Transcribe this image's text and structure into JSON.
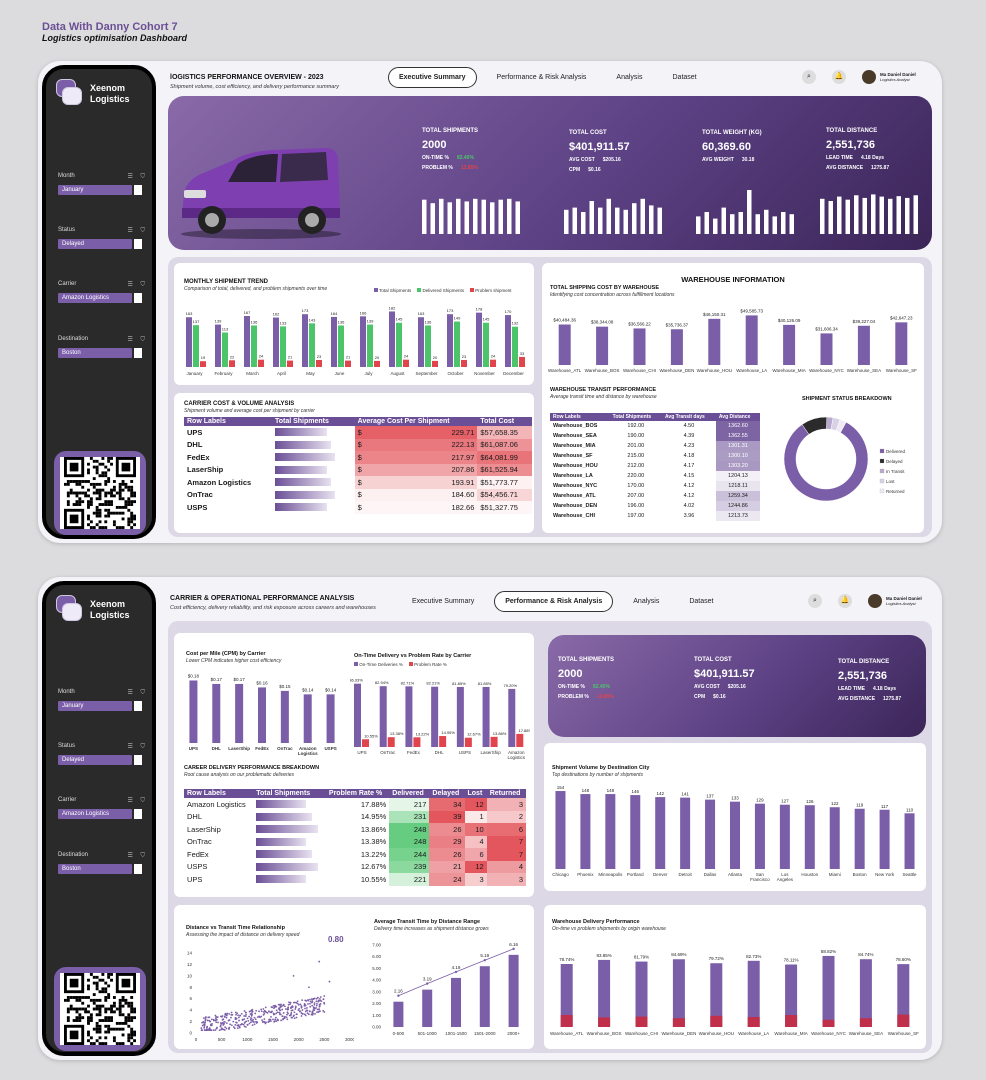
{
  "header": {
    "title": "Data With Danny Cohort 7",
    "subtitle": "Logistics optimisation Dashboard"
  },
  "brand": {
    "name_line1": "Xeenom",
    "name_line2": "Logistics"
  },
  "filters": [
    {
      "label": "Month",
      "value": "January"
    },
    {
      "label": "Status",
      "value": "Delayed"
    },
    {
      "label": "Carrier",
      "value": "Amazon Logistics"
    },
    {
      "label": "Destination",
      "value": "Boston"
    }
  ],
  "nav": {
    "tabs": [
      "Executive Summary",
      "Performance & Risk Analysis",
      "Analysis",
      "Dataset"
    ]
  },
  "user": {
    "name": "Ma Daniel Daniel",
    "role": "Logistics Analyst"
  },
  "page1": {
    "title": "lOGISTICS PERFORMANCE OVERVIEW - 2023",
    "subtitle": "Shipment volume, cost efficiency, and delivery performance summary",
    "kpis": {
      "shipments": {
        "title": "TOTAL SHIPMENTS",
        "value": "2000",
        "ontime_label": "ON-TIME %",
        "ontime": "82.40%",
        "problem_label": "PROBLEM %",
        "problem": "13.85%"
      },
      "cost": {
        "title": "TOTAL COST",
        "value": "$401,911.57",
        "avg_label": "AVG COST",
        "avg": "$205.16",
        "cpm_label": "CPM",
        "cpm": "$0.16"
      },
      "weight": {
        "title": "TOTAL WEIGHT (KG)",
        "value": "60,369.60",
        "avg_label": "AVG WEIGHT",
        "avg": "30.18"
      },
      "distance": {
        "title": "TOTAL DISTANCE",
        "value": "2,551,736",
        "lead_label": "LEAD TIME",
        "lead": "4.18 Days",
        "avgd_label": "AVG DISTANCE",
        "avgd": "1275.87"
      }
    },
    "sparks": {
      "shipments": [
        0.78,
        0.7,
        0.8,
        0.72,
        0.8,
        0.74,
        0.8,
        0.78,
        0.72,
        0.78,
        0.8,
        0.74
      ],
      "cost": [
        0.55,
        0.6,
        0.5,
        0.75,
        0.6,
        0.8,
        0.6,
        0.55,
        0.7,
        0.8,
        0.65,
        0.6
      ],
      "weight": [
        0.4,
        0.5,
        0.35,
        0.6,
        0.45,
        0.5,
        1.0,
        0.45,
        0.55,
        0.4,
        0.5,
        0.45
      ],
      "distance": [
        0.8,
        0.75,
        0.85,
        0.78,
        0.88,
        0.82,
        0.9,
        0.85,
        0.8,
        0.86,
        0.82,
        0.88
      ]
    },
    "monthly": {
      "title": "MONTHLY SHIPMENT TREND",
      "subtitle": "Comparison of total, delivered, and problem shipments over time",
      "legend": [
        "Total Shipments",
        "Delivered Shipments",
        "Problem shipment"
      ],
      "colors": [
        "#7b5ea8",
        "#4cc46a",
        "#e0444c"
      ]
    },
    "carrier_table": {
      "title": "CARRIER COST & VOLUME ANALYSIS",
      "subtitle": "Shipment volume and average cost per shipment by carrier",
      "headers": [
        "Row Labels",
        "Total Shipments",
        "Average Cost Per Shipment",
        "Total Cost"
      ],
      "rows": [
        {
          "label": "UPS",
          "avg": "229.71",
          "total": "$57,658.35"
        },
        {
          "label": "DHL",
          "avg": "222.13",
          "total": "$61,087.06"
        },
        {
          "label": "FedEx",
          "avg": "217.97",
          "total": "$64,081.99"
        },
        {
          "label": "LaserShip",
          "avg": "207.86",
          "total": "$61,525.94"
        },
        {
          "label": "Amazon Logistics",
          "avg": "193.91",
          "total": "$51,773.77"
        },
        {
          "label": "OnTrac",
          "avg": "184.60",
          "total": "$54,456.71"
        },
        {
          "label": "USPS",
          "avg": "182.66",
          "total": "$51,327.75"
        }
      ]
    },
    "warehouse": {
      "title": "WAREHOUSE INFORMATION",
      "cost_title": "TOTAL SHIPPING COST BY WAREHOUSE",
      "cost_subtitle": "Identifying cost concentration across fulfillment locations",
      "transit_title": "WAREHOUSE TRANSIT PERFORMANCE",
      "transit_subtitle": "Average transit time and distance by warehouse",
      "transit_headers": [
        "Row Labels",
        "Total Shipments",
        "Avg Transit days",
        "Avg Distance"
      ],
      "transit_rows": [
        [
          "Warehouse_BOS",
          "192.00",
          "4.50",
          "1362.60"
        ],
        [
          "Warehouse_SEA",
          "190.00",
          "4.39",
          "1362.55"
        ],
        [
          "Warehouse_MIA",
          "201.00",
          "4.23",
          "1301.31"
        ],
        [
          "Warehouse_SF",
          "215.00",
          "4.18",
          "1300.10"
        ],
        [
          "Warehouse_HOU",
          "212.00",
          "4.17",
          "1303.20"
        ],
        [
          "Warehouse_LA",
          "220.00",
          "4.15",
          "1204.13"
        ],
        [
          "Warehouse_NYC",
          "170.00",
          "4.12",
          "1218.11"
        ],
        [
          "Warehouse_ATL",
          "207.00",
          "4.12",
          "1259.34"
        ],
        [
          "Warehouse_DEN",
          "196.00",
          "4.02",
          "1244.86"
        ],
        [
          "Warehouse_CHI",
          "197.00",
          "3.96",
          "1213.73"
        ]
      ],
      "status_title": "SHIPMENT STATUS BREAKDOWN",
      "status_legend": [
        "Delivered",
        "Delayed",
        "In Transit",
        "Lost",
        "Returned"
      ]
    }
  },
  "page2": {
    "title": "CARRIER & OPERATIONAL PERFORMANCE ANALYSIS",
    "subtitle": "Cost efficiency, delivery reliability, and risk exposure across careers and warehouses",
    "cpm": {
      "title": "Cost per Mile (CPM) by Carrier",
      "subtitle": "Lower CPM indicates higher  cost efficiency"
    },
    "otd": {
      "title": "On-Time Delivery vs Problem Rate by Carrier",
      "legend": [
        "On-Time Deliveries %",
        "Problem Rate %"
      ]
    },
    "career": {
      "title": "CAREER DELIVERY PERFORMANCE BREAKDOWN",
      "subtitle": "Root cause analysis on our problematic deliveries",
      "headers": [
        "Row Labels",
        "Total Shipments",
        "Problem Rate %",
        "Delivered",
        "Delayed",
        "Lost",
        "Returned"
      ],
      "rows": [
        {
          "label": "Amazon Logistics",
          "rate": "17.88%",
          "del": "217",
          "dly": "34",
          "lost": "12",
          "ret": "3"
        },
        {
          "label": "DHL",
          "rate": "14.95%",
          "del": "231",
          "dly": "39",
          "lost": "1",
          "ret": "2"
        },
        {
          "label": "LaserShip",
          "rate": "13.86%",
          "del": "248",
          "dly": "26",
          "lost": "10",
          "ret": "6"
        },
        {
          "label": "OnTrac",
          "rate": "13.38%",
          "del": "248",
          "dly": "29",
          "lost": "4",
          "ret": "7"
        },
        {
          "label": "FedEx",
          "rate": "13.22%",
          "del": "244",
          "dly": "26",
          "lost": "6",
          "ret": "7"
        },
        {
          "label": "USPS",
          "rate": "12.67%",
          "del": "239",
          "dly": "21",
          "lost": "12",
          "ret": "4"
        },
        {
          "label": "UPS",
          "rate": "10.55%",
          "del": "221",
          "dly": "24",
          "lost": "3",
          "ret": "3"
        }
      ]
    },
    "kpis": {
      "shipments": {
        "title": "TOTAL SHIPMENTS",
        "value": "2000",
        "ontime_label": "ON-TIME %",
        "ontime": "82.40%",
        "problem_label": "PROBLEM %",
        "problem": "13.85%"
      },
      "cost": {
        "title": "TOTAL COST",
        "value": "$401,911.57",
        "avg_label": "AVG COST",
        "avg": "$205.16",
        "cpm_label": "CPM",
        "cpm": "$0.16"
      },
      "distance": {
        "title": "TOTAL DISTANCE",
        "value": "2,551,736",
        "lead_label": "LEAD TIME",
        "lead": "4.18 Days",
        "avgd_label": "AVG DISTANCE",
        "avgd": "1275.87"
      }
    },
    "dest": {
      "title": "Shipment Volume by Destination City",
      "subtitle": "Top destinations by number of shipments"
    },
    "scatter": {
      "title": "Distance vs Transit Time Relationship",
      "subtitle": "Assessing the impact of distance on delivery speed",
      "r": "0.80"
    },
    "transit": {
      "title": "Average Transit Time by Distance Range",
      "subtitle": "Delivery time increases as shipment distance grows"
    },
    "wdp": {
      "title": "Warehouse Delivery Performance",
      "subtitle": "On-time vs problem shipments by origin warehouse"
    }
  },
  "chart_data": [
    {
      "type": "bar",
      "name": "monthly",
      "categories": [
        "January",
        "February",
        "March",
        "April",
        "May",
        "June",
        "July",
        "August",
        "September",
        "October",
        "November",
        "December"
      ],
      "series": [
        {
          "name": "Total Shipments",
          "values": [
            163,
            139,
            167,
            162,
            173,
            164,
            166,
            182,
            163,
            173,
            178,
            170
          ]
        },
        {
          "name": "Delivered Shipments",
          "values": [
            137,
            113,
            136,
            133,
            143,
            136,
            139,
            145,
            136,
            149,
            145,
            132
          ]
        },
        {
          "name": "Problem shipment",
          "values": [
            19,
            22,
            24,
            21,
            23,
            21,
            20,
            24,
            20,
            23,
            24,
            33
          ]
        }
      ]
    },
    {
      "type": "bar",
      "name": "warehouse_cost",
      "categories": [
        "Warehouse_ATL",
        "Warehouse_BOS",
        "Warehouse_CHI",
        "Warehouse_DEN",
        "Warehouse_HOU",
        "Warehouse_LA",
        "Warehouse_MIA",
        "Warehouse_NYC",
        "Warehouse_SEA",
        "Warehouse_SF"
      ],
      "values": [
        40484.36,
        38344.08,
        36566.22,
        35736.37,
        46150.31,
        49585.73,
        40126.09,
        31606.34,
        39227.04,
        42647.23
      ],
      "labels": [
        "$40,484.36",
        "$38,344.08",
        "$36,566.22",
        "$35,736.37",
        "$46,150.31",
        "$49,585.73",
        "$40,126.09",
        "$31,606.34",
        "$39,227.04",
        "$42,647.23"
      ]
    },
    {
      "type": "pie",
      "name": "status",
      "categories": [
        "Delivered",
        "Delayed",
        "In Transit",
        "Lost",
        "Returned"
      ],
      "values": [
        1648,
        199,
        48,
        55,
        50
      ],
      "colors": [
        "#7b5ea8",
        "#2b2b2b",
        "#b8a9cf",
        "#d9d2e6",
        "#efeaf5"
      ]
    },
    {
      "type": "bar",
      "name": "cpm",
      "categories": [
        "UPS",
        "DHL",
        "LaserShip",
        "FedEx",
        "OnTrac",
        "Amazon Logistics",
        "USPS"
      ],
      "values": [
        0.18,
        0.17,
        0.17,
        0.16,
        0.15,
        0.14,
        0.14
      ],
      "labels": [
        "$0.18",
        "$0.17",
        "$0.17",
        "$0.16",
        "$0.15",
        "$0.14",
        "$0.14"
      ]
    },
    {
      "type": "bar",
      "name": "otd",
      "categories": [
        "UPS",
        "OnTrac",
        "FedEx",
        "DHL",
        "USPS",
        "LaserShip",
        "Amazon Logistics"
      ],
      "series": [
        {
          "name": "On-Time Deliveries %",
          "values": [
            86.33,
            82.94,
            82.71,
            82.21,
            81.85,
            81.85,
            79.2
          ],
          "labels": [
            "86.33%",
            "82.94%",
            "82.71%",
            "82.21%",
            "81.85%",
            "81.85%",
            "79.20%"
          ]
        },
        {
          "name": "Problem Rate %",
          "values": [
            10.55,
            13.38,
            13.22,
            14.95,
            12.67,
            13.86,
            17.88
          ],
          "labels": [
            "10.55%",
            "13.38%",
            "13.22%",
            "14.95%",
            "12.67%",
            "13.86%",
            "17.88%"
          ]
        }
      ]
    },
    {
      "type": "bar",
      "name": "dest",
      "categories": [
        "Chicago",
        "Phoenix",
        "Minneapolis",
        "Portland",
        "Denver",
        "Detroit",
        "Dallas",
        "Atlanta",
        "San Francisco",
        "Los Angeles",
        "Houston",
        "Miami",
        "Boston",
        "New York",
        "Seattle"
      ],
      "values": [
        154,
        148,
        148,
        146,
        142,
        141,
        137,
        133,
        129,
        127,
        126,
        122,
        119,
        117,
        110
      ]
    },
    {
      "type": "scatter",
      "name": "distance_transit",
      "xlim": [
        0,
        3000
      ],
      "ylim": [
        0,
        14
      ],
      "xticks": [
        0,
        500,
        1000,
        1500,
        2000,
        2500,
        3000
      ],
      "yticks": [
        0,
        2,
        4,
        6,
        8,
        10,
        12,
        14
      ]
    },
    {
      "type": "bar",
      "name": "transit_range",
      "categories": [
        "0-500",
        "501-1000",
        "1001-1500",
        "1501-2000",
        "2000+"
      ],
      "values": [
        2.16,
        3.19,
        4.19,
        5.19,
        6.16
      ],
      "ylim": [
        0,
        7
      ],
      "yticks": [
        "0.00",
        "1.00",
        "2.00",
        "3.00",
        "4.00",
        "5.00",
        "6.00",
        "7.00"
      ]
    },
    {
      "type": "bar",
      "name": "wdp",
      "categories": [
        "Warehouse_ATL",
        "Warehouse_BOS",
        "Warehouse_CHI",
        "Warehouse_DEN",
        "Warehouse_HOU",
        "Warehouse_LA",
        "Warehouse_MIA",
        "Warehouse_NYC",
        "Warehouse_SEA",
        "Warehouse_SF"
      ],
      "series": [
        {
          "name": "On-time",
          "values": [
            78.74,
            83.85,
            81.79,
            84.69,
            79.72,
            82.73,
            78.11,
            88.82,
            84.74,
            78.6
          ],
          "labels": [
            "78.74%",
            "83.85%",
            "81.79%",
            "84.69%",
            "79.72%",
            "82.73%",
            "78.11%",
            "88.82%",
            "84.74%",
            "78.60%"
          ]
        },
        {
          "name": "Problem",
          "values": [
            15.0,
            12.0,
            13.0,
            11.0,
            14.0,
            12.5,
            15.0,
            9.0,
            11.0,
            15.5
          ]
        }
      ]
    }
  ]
}
